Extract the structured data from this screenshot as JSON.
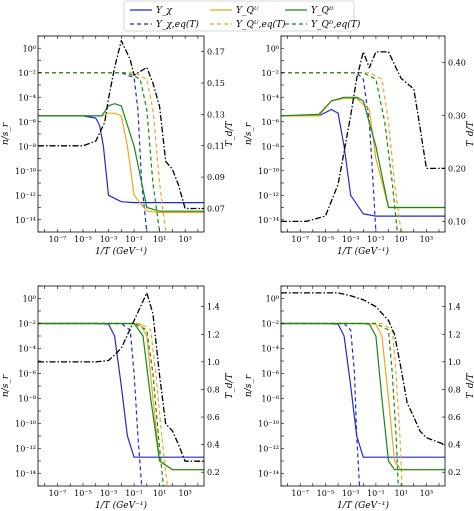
{
  "legend": {
    "entries": [
      {
        "label": "Y_χ",
        "color": "#1f2bd0",
        "dash": "solid"
      },
      {
        "label": "Y_Qᵁ",
        "color": "#f0a818",
        "dash": "solid"
      },
      {
        "label": "Y_Qᴰ",
        "color": "#158a15",
        "dash": "solid"
      },
      {
        "label": "Y_χ,eq(T)",
        "color": "#1f2bd0",
        "dash": "dashed"
      },
      {
        "label": "Y_Qᵁ,eq(T)",
        "color": "#f0a818",
        "dash": "dashed"
      },
      {
        "label": "Y_Qᴰ,eq(T)",
        "color": "#158a15",
        "dash": "dashed"
      }
    ]
  },
  "chart_data": [
    {
      "type": "line",
      "xlabel": "1/T (GeV⁻¹)",
      "ylabel": "n/s_r",
      "y2label": "T_d/T",
      "xscale": "log",
      "xlim": [
        3e-09,
        30000.0
      ],
      "yscale": "log",
      "ylim": [
        1e-15,
        10.0
      ],
      "xticks": [
        "10⁻⁷",
        "10⁻⁵",
        "10⁻³",
        "10⁻¹",
        "10¹",
        "10³"
      ],
      "yticks": [
        "10⁰",
        "10⁻²",
        "10⁻⁴",
        "10⁻⁶",
        "10⁻⁸",
        "10⁻¹⁰",
        "10⁻¹²",
        "10⁻¹⁴"
      ],
      "y2lim": [
        0.055,
        0.18
      ],
      "y2ticks": [
        0.07,
        0.09,
        0.11,
        0.13,
        0.15,
        0.17
      ],
      "series": [
        {
          "name": "Y_χ",
          "color": "#1f2bd0",
          "dash": "solid",
          "x": [
            3e-09,
            1e-05,
            0.0001,
            0.0002,
            0.0004,
            0.001,
            0.01,
            0.1,
            30000.0
          ],
          "y": [
            3e-06,
            3e-06,
            2e-06,
            5e-07,
            1e-08,
            1e-12,
            3e-13,
            2.5e-13,
            2.5e-13
          ]
        },
        {
          "name": "Y_χ,eq(T)",
          "color": "#1f2bd0",
          "dash": "dashed",
          "x": [
            3e-09,
            0.01,
            0.1,
            0.2,
            0.4,
            1
          ],
          "y": [
            0.01,
            0.01,
            0.004,
            1e-05,
            1e-11,
            1e-15
          ]
        },
        {
          "name": "Y_Qᵁ",
          "color": "#f0a818",
          "dash": "solid",
          "x": [
            3e-09,
            0.0003,
            0.001,
            0.003,
            0.01,
            0.03,
            0.1,
            1,
            10,
            30000.0
          ],
          "y": [
            3e-06,
            3e-06,
            5e-06,
            5e-06,
            3e-06,
            1e-08,
            1e-12,
            5e-14,
            4e-14,
            4e-14
          ]
        },
        {
          "name": "Y_Qᵁ,eq(T)",
          "color": "#f0a818",
          "dash": "dashed",
          "x": [
            3e-09,
            0.1,
            1,
            3,
            10,
            30
          ],
          "y": [
            0.01,
            0.01,
            0.003,
            1e-05,
            1e-11,
            1e-15
          ]
        },
        {
          "name": "Y_Qᴰ",
          "color": "#158a15",
          "dash": "solid",
          "x": [
            3e-09,
            0.0003,
            0.001,
            0.003,
            0.01,
            0.1,
            1,
            10,
            30000.0
          ],
          "y": [
            3e-06,
            3e-06,
            2e-05,
            3e-05,
            2e-05,
            1e-08,
            1e-13,
            5e-14,
            5e-14
          ]
        },
        {
          "name": "Y_Qᴰ,eq(T)",
          "color": "#158a15",
          "dash": "dashed",
          "x": [
            3e-09,
            0.03,
            0.3,
            1,
            3,
            10
          ],
          "y": [
            0.01,
            0.01,
            0.003,
            1e-05,
            1e-11,
            1e-15
          ]
        },
        {
          "name": "T_d/T",
          "color": "#000000",
          "dash": "dashdot",
          "axis": "right",
          "x": [
            3e-09,
            1e-05,
            0.0001,
            0.0005,
            0.001,
            0.003,
            0.01,
            0.05,
            0.1,
            1,
            3,
            10,
            30,
            100,
            300,
            1000,
            30000.0
          ],
          "y": [
            0.11,
            0.11,
            0.113,
            0.125,
            0.14,
            0.16,
            0.177,
            0.165,
            0.155,
            0.16,
            0.15,
            0.135,
            0.1,
            0.095,
            0.085,
            0.07,
            0.07
          ]
        }
      ]
    },
    {
      "type": "line",
      "xlabel": "1/T (GeV⁻¹)",
      "ylabel": "n/s_r",
      "y2label": "T_d/T",
      "xscale": "log",
      "xlim": [
        3e-09,
        30000.0
      ],
      "yscale": "log",
      "ylim": [
        1e-15,
        10.0
      ],
      "xticks": [
        "10⁻⁷",
        "10⁻⁵",
        "10⁻³",
        "10⁻¹",
        "10¹",
        "10³"
      ],
      "yticks": [
        "10⁰",
        "10⁻²",
        "10⁻⁴",
        "10⁻⁶",
        "10⁻⁸",
        "10⁻¹⁰",
        "10⁻¹²",
        "10⁻¹⁴"
      ],
      "y2lim": [
        0.08,
        0.45
      ],
      "y2ticks": [
        0.1,
        0.2,
        0.3,
        0.4
      ],
      "series": [
        {
          "name": "Y_χ",
          "color": "#1f2bd0",
          "dash": "solid",
          "x": [
            3e-09,
            3e-06,
            3e-05,
            0.0001,
            0.0003,
            0.001,
            0.01,
            0.1,
            30000.0
          ],
          "y": [
            3e-06,
            3e-06,
            1e-05,
            5e-06,
            1e-08,
            1e-12,
            3e-14,
            2e-14,
            2e-14
          ]
        },
        {
          "name": "Y_χ,eq(T)",
          "color": "#1f2bd0",
          "dash": "dashed",
          "x": [
            3e-09,
            0.003,
            0.01,
            0.03,
            0.06,
            0.1
          ],
          "y": [
            0.01,
            0.01,
            0.003,
            1e-06,
            1e-11,
            1e-15
          ]
        },
        {
          "name": "Y_Qᵁ",
          "color": "#f0a818",
          "dash": "solid",
          "x": [
            3e-09,
            3e-06,
            3e-05,
            0.0003,
            0.003,
            0.03,
            0.1,
            1,
            10,
            30000.0
          ],
          "y": [
            3e-06,
            3e-06,
            5e-05,
            8e-05,
            8e-05,
            1e-05,
            1e-09,
            1e-13,
            1e-13,
            1e-13
          ]
        },
        {
          "name": "Y_Qᵁ,eq(T)",
          "color": "#f0a818",
          "dash": "dashed",
          "x": [
            3e-09,
            0.03,
            0.3,
            1,
            3,
            10
          ],
          "y": [
            0.01,
            0.01,
            0.003,
            1e-06,
            1e-11,
            1e-15
          ]
        },
        {
          "name": "Y_Qᴰ",
          "color": "#158a15",
          "dash": "solid",
          "x": [
            3e-09,
            3e-06,
            3e-05,
            0.0003,
            0.003,
            0.01,
            0.1,
            1,
            30000.0
          ],
          "y": [
            3e-06,
            4e-06,
            5e-05,
            0.0001,
            0.0001,
            5e-05,
            1e-08,
            1e-13,
            1e-13
          ]
        },
        {
          "name": "Y_Qᴰ,eq(T)",
          "color": "#158a15",
          "dash": "dashed",
          "x": [
            3e-09,
            0.01,
            0.1,
            0.5,
            2,
            5
          ],
          "y": [
            0.01,
            0.01,
            0.003,
            1e-06,
            1e-11,
            1e-15
          ]
        },
        {
          "name": "T_d/T",
          "color": "#000000",
          "dash": "dashdot",
          "axis": "right",
          "x": [
            3e-09,
            3e-07,
            1e-05,
            0.0001,
            0.001,
            0.003,
            0.01,
            0.03,
            0.1,
            1,
            10,
            100,
            300,
            1000,
            30000.0
          ],
          "y": [
            0.1,
            0.1,
            0.11,
            0.17,
            0.3,
            0.37,
            0.42,
            0.39,
            0.42,
            0.42,
            0.37,
            0.35,
            0.28,
            0.2,
            0.2
          ]
        }
      ]
    },
    {
      "type": "line",
      "xlabel": "1/T (GeV⁻¹)",
      "ylabel": "n/s_r",
      "y2label": "T_d/T",
      "xscale": "log",
      "xlim": [
        3e-09,
        30000.0
      ],
      "yscale": "log",
      "ylim": [
        1e-15,
        10.0
      ],
      "xticks": [
        "10⁻⁷",
        "10⁻⁵",
        "10⁻³",
        "10⁻¹",
        "10¹",
        "10³"
      ],
      "yticks": [
        "10⁰",
        "10⁻²",
        "10⁻⁴",
        "10⁻⁶",
        "10⁻⁸",
        "10⁻¹⁰",
        "10⁻¹²",
        "10⁻¹⁴"
      ],
      "y2lim": [
        0.1,
        1.55
      ],
      "y2ticks": [
        0.2,
        0.4,
        0.6,
        0.8,
        1.0,
        1.2,
        1.4
      ],
      "series": [
        {
          "name": "Y_χ",
          "color": "#1f2bd0",
          "dash": "solid",
          "x": [
            3e-09,
            0.0001,
            0.001,
            0.003,
            0.01,
            0.03,
            0.1,
            1,
            30000.0
          ],
          "y": [
            0.01,
            0.01,
            0.009,
            0.001,
            1e-07,
            1e-11,
            2e-13,
            2e-13,
            2e-13
          ]
        },
        {
          "name": "Y_χ,eq(T)",
          "color": "#1f2bd0",
          "dash": "dashed",
          "x": [
            3e-09,
            0.01,
            0.05,
            0.1,
            0.2,
            0.4
          ],
          "y": [
            0.01,
            0.01,
            0.003,
            1e-06,
            1e-11,
            1e-15
          ]
        },
        {
          "name": "Y_Qᵁ",
          "color": "#f0a818",
          "dash": "solid",
          "x": [
            3e-09,
            0.01,
            0.3,
            1,
            3,
            10,
            100,
            30000.0
          ],
          "y": [
            0.01,
            0.01,
            0.009,
            0.001,
            1e-08,
            1e-13,
            2e-14,
            2e-14
          ]
        },
        {
          "name": "Y_Qᵁ,eq(T)",
          "color": "#f0a818",
          "dash": "dashed",
          "x": [
            3e-09,
            0.3,
            2,
            5,
            15,
            40
          ],
          "y": [
            0.01,
            0.01,
            0.003,
            1e-06,
            1e-11,
            1e-15
          ]
        },
        {
          "name": "Y_Qᴰ",
          "color": "#158a15",
          "dash": "solid",
          "x": [
            3e-09,
            0.01,
            0.1,
            0.5,
            2,
            10,
            100,
            30000.0
          ],
          "y": [
            0.01,
            0.01,
            0.01,
            0.001,
            1e-08,
            1e-13,
            2e-14,
            2e-14
          ]
        },
        {
          "name": "Y_Qᴰ,eq(T)",
          "color": "#158a15",
          "dash": "dashed",
          "x": [
            3e-09,
            0.1,
            1,
            3,
            8,
            20
          ],
          "y": [
            0.01,
            0.01,
            0.003,
            1e-06,
            1e-11,
            1e-15
          ]
        },
        {
          "name": "T_d/T",
          "color": "#000000",
          "dash": "dashdot",
          "axis": "right",
          "x": [
            3e-09,
            1e-05,
            0.0001,
            0.001,
            0.003,
            0.01,
            0.1,
            1,
            3,
            10,
            30,
            100,
            300,
            1000,
            30000.0
          ],
          "y": [
            1.0,
            1.0,
            1.0,
            1.01,
            1.05,
            1.1,
            1.3,
            1.5,
            1.35,
            0.9,
            0.55,
            0.5,
            0.4,
            0.28,
            0.28
          ]
        }
      ]
    },
    {
      "type": "line",
      "xlabel": "1/T (GeV⁻¹)",
      "ylabel": "n/s_r",
      "y2label": "T_d/T",
      "xscale": "log",
      "xlim": [
        3e-09,
        30000.0
      ],
      "yscale": "log",
      "ylim": [
        1e-15,
        10.0
      ],
      "xticks": [
        "10⁻⁷",
        "10⁻⁵",
        "10⁻³",
        "10⁻¹",
        "10¹",
        "10³"
      ],
      "yticks": [
        "10⁰",
        "10⁻²",
        "10⁻⁴",
        "10⁻⁶",
        "10⁻⁸",
        "10⁻¹⁰",
        "10⁻¹²",
        "10⁻¹⁴"
      ],
      "y2lim": [
        0.1,
        1.55
      ],
      "y2ticks": [
        0.2,
        0.4,
        0.6,
        0.8,
        1.0,
        1.2,
        1.4
      ],
      "series": [
        {
          "name": "Y_χ",
          "color": "#1f2bd0",
          "dash": "solid",
          "x": [
            3e-09,
            1e-05,
            0.0001,
            0.0003,
            0.001,
            0.003,
            0.01,
            0.1,
            30000.0
          ],
          "y": [
            0.01,
            0.01,
            0.009,
            0.001,
            1e-07,
            1e-11,
            2e-13,
            2e-13,
            2e-13
          ]
        },
        {
          "name": "Y_χ,eq(T)",
          "color": "#1f2bd0",
          "dash": "dashed",
          "x": [
            3e-09,
            0.0003,
            0.001,
            0.002,
            0.003,
            0.005
          ],
          "y": [
            0.01,
            0.01,
            0.003,
            1e-06,
            1e-11,
            1e-15
          ]
        },
        {
          "name": "Y_Qᵁ",
          "color": "#f0a818",
          "dash": "solid",
          "x": [
            3e-09,
            0.01,
            0.1,
            0.3,
            1,
            3,
            10,
            30000.0
          ],
          "y": [
            0.01,
            0.01,
            0.009,
            0.001,
            1e-08,
            1e-13,
            2e-14,
            2e-14
          ]
        },
        {
          "name": "Y_Qᵁ,eq(T)",
          "color": "#f0a818",
          "dash": "dashed",
          "x": [
            3e-09,
            0.3,
            2,
            4,
            8,
            12
          ],
          "y": [
            0.01,
            0.01,
            0.003,
            1e-06,
            1e-11,
            1e-15
          ]
        },
        {
          "name": "Y_Qᴰ",
          "color": "#158a15",
          "dash": "solid",
          "x": [
            3e-09,
            0.01,
            0.03,
            0.1,
            0.3,
            1,
            3,
            30000.0
          ],
          "y": [
            0.01,
            0.01,
            0.009,
            0.001,
            1e-08,
            1e-13,
            2e-14,
            2e-14
          ]
        },
        {
          "name": "Y_Qᴰ,eq(T)",
          "color": "#158a15",
          "dash": "dashed",
          "x": [
            3e-09,
            0.1,
            1,
            2,
            4,
            6
          ],
          "y": [
            0.01,
            0.01,
            0.003,
            1e-06,
            1e-11,
            1e-15
          ]
        },
        {
          "name": "T_d/T",
          "color": "#000000",
          "dash": "dashdot",
          "axis": "right",
          "x": [
            3e-09,
            1e-05,
            0.0001,
            0.001,
            0.01,
            0.1,
            1,
            3,
            10,
            30,
            100,
            300,
            1000,
            30000.0
          ],
          "y": [
            1.5,
            1.5,
            1.5,
            1.48,
            1.45,
            1.4,
            1.3,
            1.2,
            0.95,
            0.7,
            0.6,
            0.5,
            0.45,
            0.4
          ]
        }
      ]
    }
  ]
}
